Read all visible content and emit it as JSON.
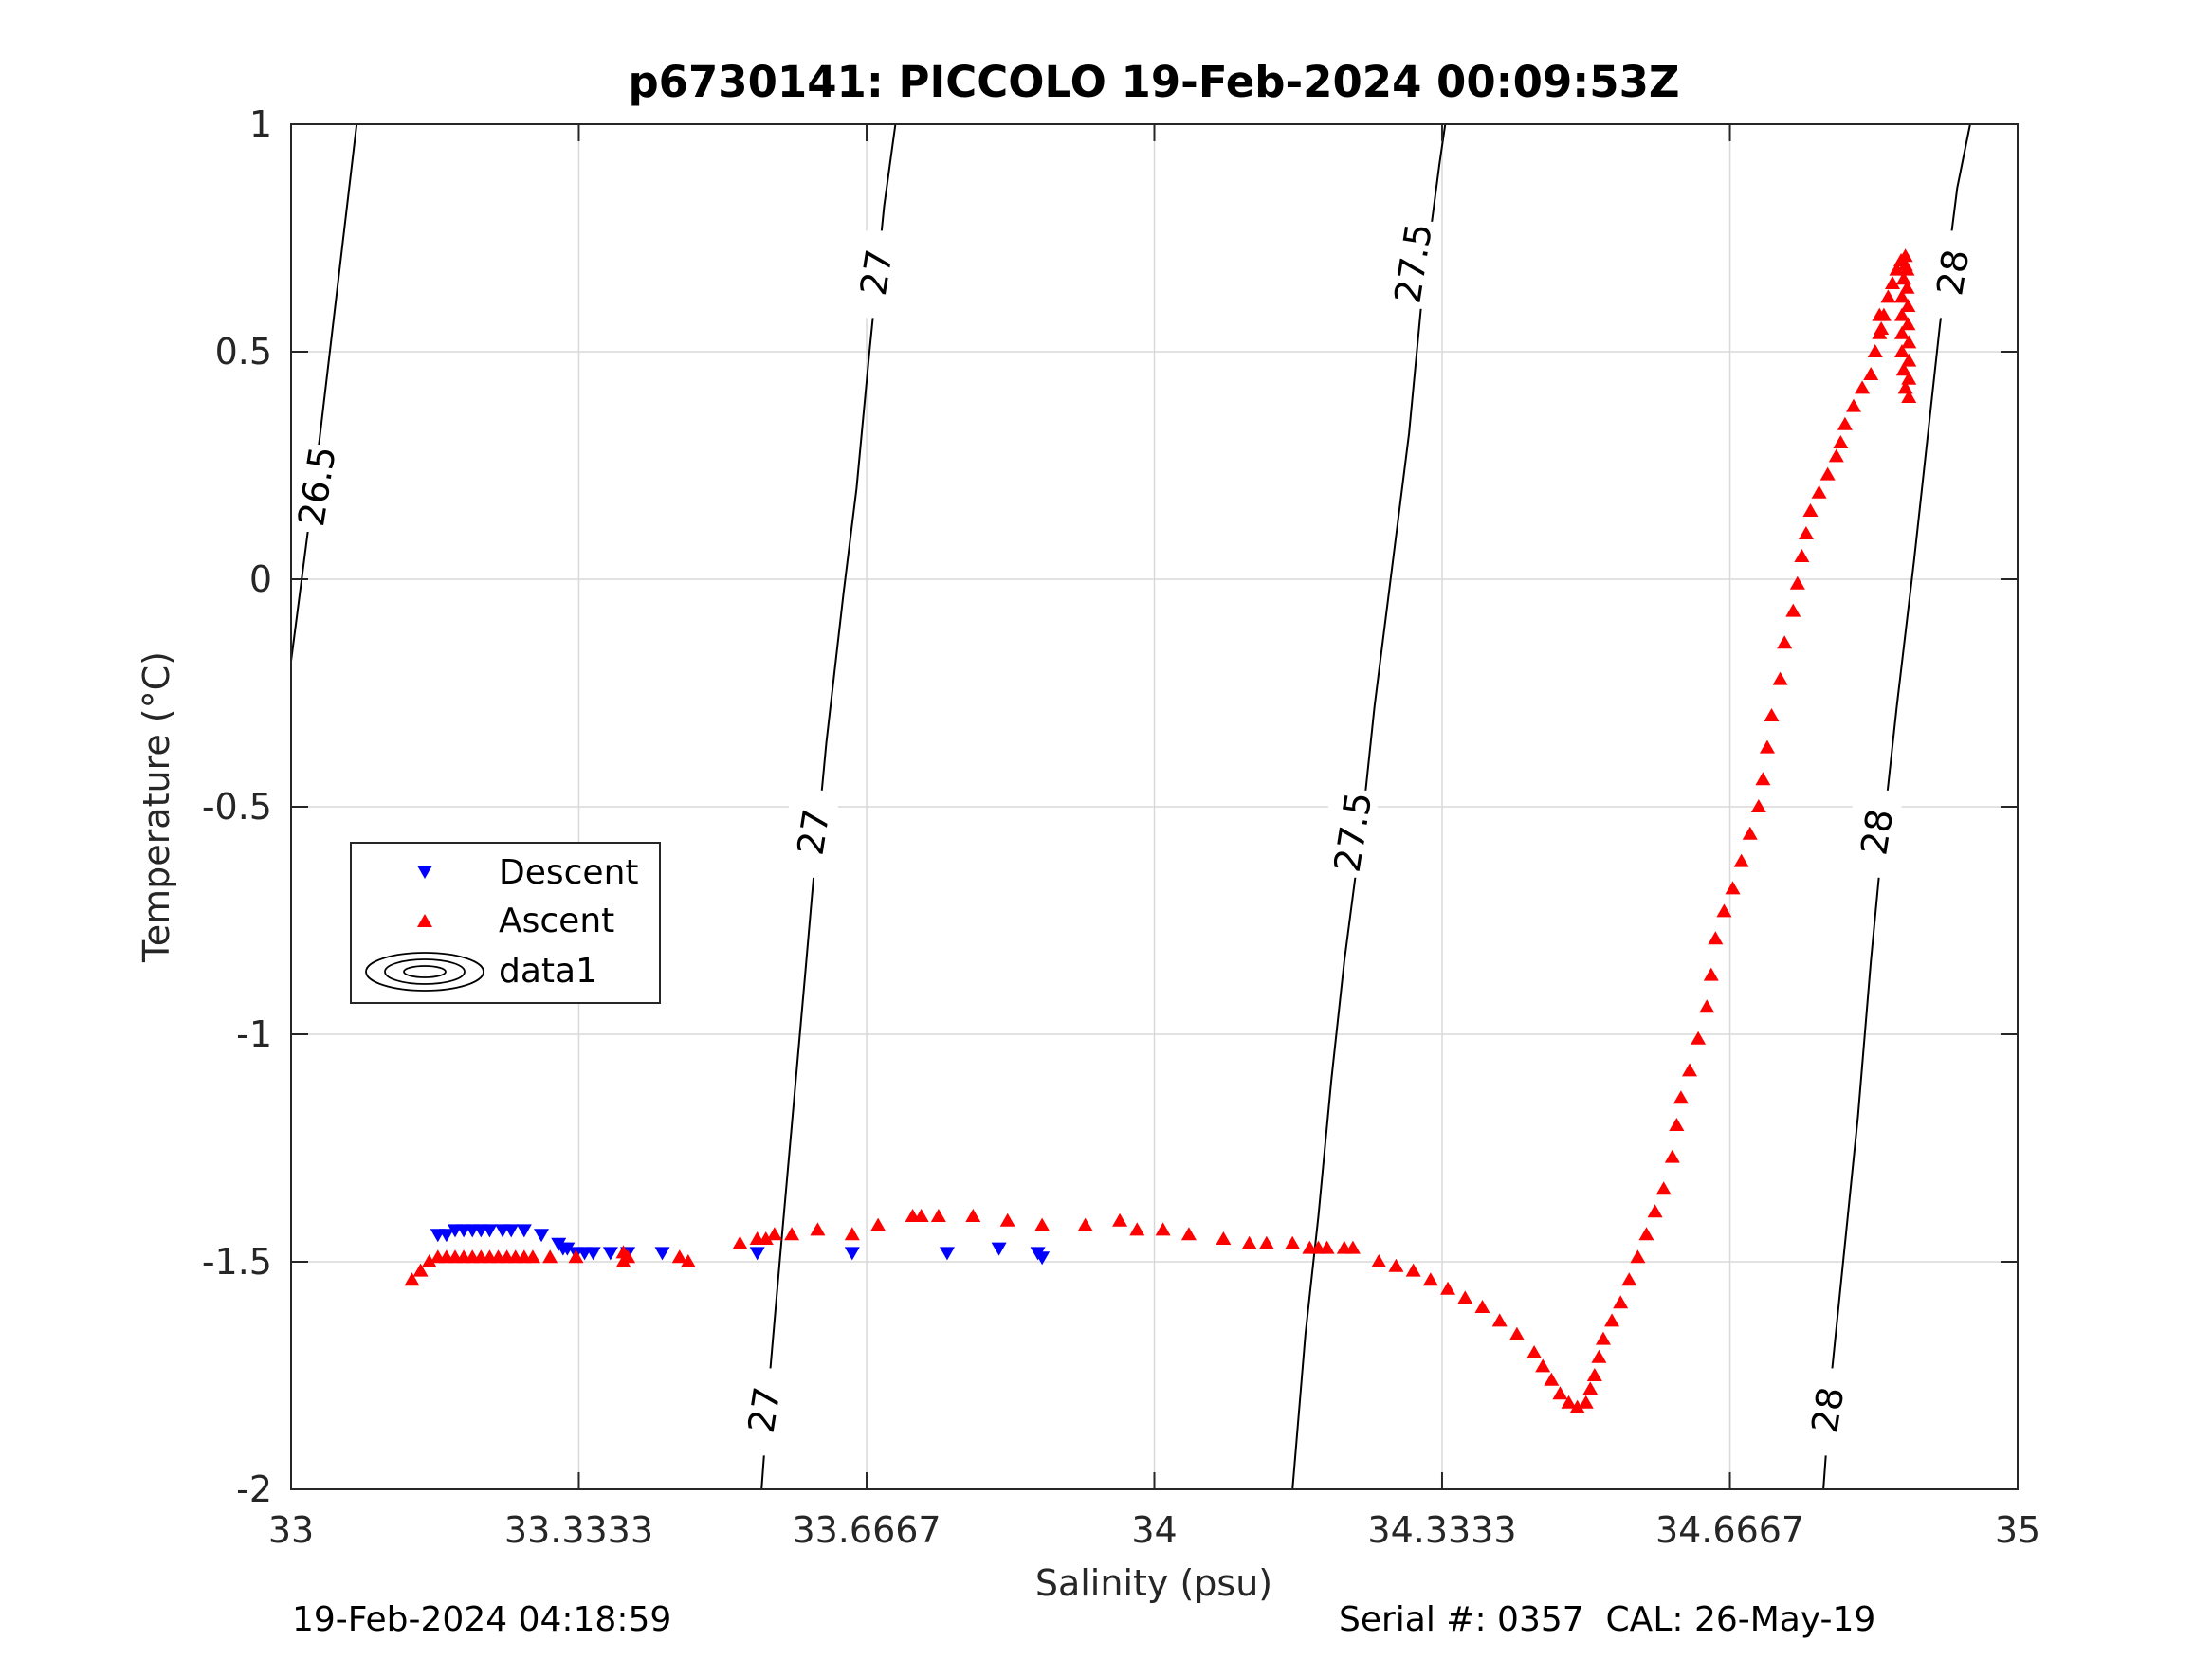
{
  "chart_data": {
    "type": "scatter",
    "title": "p6730141: PICCOLO 19-Feb-2024 00:09:53Z",
    "xlabel": "Salinity (psu)",
    "ylabel": "Temperature (°C)",
    "xlim": [
      33,
      35
    ],
    "ylim": [
      -2,
      1
    ],
    "xticks": [
      33,
      33.3333,
      33.6667,
      34,
      34.3333,
      34.6667,
      35
    ],
    "xtick_labels": [
      "33",
      "33.3333",
      "33.6667",
      "34",
      "34.3333",
      "34.6667",
      "35"
    ],
    "yticks": [
      -2,
      -1.5,
      -1,
      -0.5,
      0,
      0.5,
      1
    ],
    "ytick_labels": [
      "-2",
      "-1.5",
      "-1",
      "-0.5",
      "0",
      "0.5",
      "1"
    ],
    "grid": true,
    "legend_placement": "center-left",
    "legend": [
      "Descent",
      "Ascent",
      "data1"
    ],
    "colors": {
      "descent": "#0000ff",
      "ascent": "#ff0000",
      "contour": "#000000",
      "grid": "#d9d9d9"
    },
    "series": [
      {
        "name": "Descent",
        "marker": "triangle-down",
        "points": [
          [
            33.17,
            -1.44
          ],
          [
            33.18,
            -1.44
          ],
          [
            33.19,
            -1.43
          ],
          [
            33.2,
            -1.43
          ],
          [
            33.21,
            -1.43
          ],
          [
            33.22,
            -1.43
          ],
          [
            33.23,
            -1.43
          ],
          [
            33.245,
            -1.43
          ],
          [
            33.255,
            -1.43
          ],
          [
            33.27,
            -1.43
          ],
          [
            33.29,
            -1.44
          ],
          [
            33.31,
            -1.46
          ],
          [
            33.315,
            -1.47
          ],
          [
            33.32,
            -1.47
          ],
          [
            33.33,
            -1.48
          ],
          [
            33.34,
            -1.48
          ],
          [
            33.35,
            -1.48
          ],
          [
            33.37,
            -1.48
          ],
          [
            33.39,
            -1.48
          ],
          [
            33.43,
            -1.48
          ],
          [
            33.54,
            -1.48
          ],
          [
            33.65,
            -1.48
          ],
          [
            33.76,
            -1.48
          ],
          [
            33.82,
            -1.47
          ],
          [
            33.865,
            -1.48
          ],
          [
            33.87,
            -1.49
          ]
        ]
      },
      {
        "name": "Ascent",
        "marker": "triangle-up",
        "points": [
          [
            33.14,
            -1.54
          ],
          [
            33.15,
            -1.52
          ],
          [
            33.16,
            -1.5
          ],
          [
            33.17,
            -1.49
          ],
          [
            33.18,
            -1.49
          ],
          [
            33.19,
            -1.49
          ],
          [
            33.2,
            -1.49
          ],
          [
            33.21,
            -1.49
          ],
          [
            33.22,
            -1.49
          ],
          [
            33.23,
            -1.49
          ],
          [
            33.24,
            -1.49
          ],
          [
            33.25,
            -1.49
          ],
          [
            33.26,
            -1.49
          ],
          [
            33.27,
            -1.49
          ],
          [
            33.28,
            -1.49
          ],
          [
            33.3,
            -1.49
          ],
          [
            33.33,
            -1.49
          ],
          [
            33.385,
            -1.48
          ],
          [
            33.385,
            -1.5
          ],
          [
            33.39,
            -1.49
          ],
          [
            33.45,
            -1.49
          ],
          [
            33.46,
            -1.5
          ],
          [
            33.52,
            -1.46
          ],
          [
            33.54,
            -1.45
          ],
          [
            33.55,
            -1.45
          ],
          [
            33.56,
            -1.44
          ],
          [
            33.58,
            -1.44
          ],
          [
            33.61,
            -1.43
          ],
          [
            33.65,
            -1.44
          ],
          [
            33.68,
            -1.42
          ],
          [
            33.72,
            -1.4
          ],
          [
            33.73,
            -1.4
          ],
          [
            33.75,
            -1.4
          ],
          [
            33.79,
            -1.4
          ],
          [
            33.83,
            -1.41
          ],
          [
            33.87,
            -1.42
          ],
          [
            33.92,
            -1.42
          ],
          [
            33.96,
            -1.41
          ],
          [
            33.98,
            -1.43
          ],
          [
            34.01,
            -1.43
          ],
          [
            34.04,
            -1.44
          ],
          [
            34.08,
            -1.45
          ],
          [
            34.11,
            -1.46
          ],
          [
            34.13,
            -1.46
          ],
          [
            34.16,
            -1.46
          ],
          [
            34.18,
            -1.47
          ],
          [
            34.19,
            -1.47
          ],
          [
            34.2,
            -1.47
          ],
          [
            34.22,
            -1.47
          ],
          [
            34.23,
            -1.47
          ],
          [
            34.26,
            -1.5
          ],
          [
            34.28,
            -1.51
          ],
          [
            34.3,
            -1.52
          ],
          [
            34.32,
            -1.54
          ],
          [
            34.34,
            -1.56
          ],
          [
            34.36,
            -1.58
          ],
          [
            34.38,
            -1.6
          ],
          [
            34.4,
            -1.63
          ],
          [
            34.42,
            -1.66
          ],
          [
            34.44,
            -1.7
          ],
          [
            34.45,
            -1.73
          ],
          [
            34.46,
            -1.76
          ],
          [
            34.47,
            -1.79
          ],
          [
            34.48,
            -1.81
          ],
          [
            34.49,
            -1.82
          ],
          [
            34.5,
            -1.81
          ],
          [
            34.505,
            -1.78
          ],
          [
            34.51,
            -1.75
          ],
          [
            34.515,
            -1.71
          ],
          [
            34.52,
            -1.67
          ],
          [
            34.53,
            -1.63
          ],
          [
            34.54,
            -1.59
          ],
          [
            34.55,
            -1.54
          ],
          [
            34.56,
            -1.49
          ],
          [
            34.57,
            -1.44
          ],
          [
            34.58,
            -1.39
          ],
          [
            34.59,
            -1.34
          ],
          [
            34.6,
            -1.27
          ],
          [
            34.605,
            -1.2
          ],
          [
            34.61,
            -1.14
          ],
          [
            34.62,
            -1.08
          ],
          [
            34.63,
            -1.01
          ],
          [
            34.64,
            -0.94
          ],
          [
            34.645,
            -0.87
          ],
          [
            34.65,
            -0.79
          ],
          [
            34.66,
            -0.73
          ],
          [
            34.67,
            -0.68
          ],
          [
            34.68,
            -0.62
          ],
          [
            34.69,
            -0.56
          ],
          [
            34.7,
            -0.5
          ],
          [
            34.705,
            -0.44
          ],
          [
            34.71,
            -0.37
          ],
          [
            34.715,
            -0.3
          ],
          [
            34.725,
            -0.22
          ],
          [
            34.73,
            -0.14
          ],
          [
            34.74,
            -0.07
          ],
          [
            34.745,
            -0.01
          ],
          [
            34.75,
            0.05
          ],
          [
            34.755,
            0.1
          ],
          [
            34.76,
            0.15
          ],
          [
            34.77,
            0.19
          ],
          [
            34.78,
            0.23
          ],
          [
            34.79,
            0.27
          ],
          [
            34.795,
            0.3
          ],
          [
            34.8,
            0.34
          ],
          [
            34.81,
            0.38
          ],
          [
            34.82,
            0.42
          ],
          [
            34.83,
            0.45
          ],
          [
            34.835,
            0.5
          ],
          [
            34.84,
            0.54
          ],
          [
            34.845,
            0.58
          ],
          [
            34.85,
            0.62
          ],
          [
            34.855,
            0.65
          ],
          [
            34.86,
            0.68
          ],
          [
            34.865,
            0.7
          ],
          [
            34.87,
            0.71
          ],
          [
            34.872,
            0.68
          ],
          [
            34.872,
            0.64
          ],
          [
            34.873,
            0.6
          ],
          [
            34.873,
            0.56
          ],
          [
            34.874,
            0.52
          ],
          [
            34.874,
            0.48
          ],
          [
            34.874,
            0.44
          ],
          [
            34.874,
            0.4
          ],
          [
            34.87,
            0.42
          ],
          [
            34.868,
            0.46
          ],
          [
            34.866,
            0.5
          ],
          [
            34.866,
            0.54
          ],
          [
            34.866,
            0.58
          ],
          [
            34.866,
            0.62
          ],
          [
            34.868,
            0.66
          ],
          [
            34.87,
            0.69
          ],
          [
            34.84,
            0.58
          ],
          [
            34.842,
            0.55
          ]
        ]
      },
      {
        "name": "data1",
        "type": "contour",
        "levels": [
          26.5,
          27,
          27.5,
          28
        ],
        "lines": [
          {
            "level": 26.5,
            "points": [
              [
                33.0,
                -0.18
              ],
              [
                33.03,
                0.26
              ],
              [
                33.076,
                1.0
              ]
            ]
          },
          {
            "level": 27,
            "points": [
              [
                33.545,
                -2.0
              ],
              [
                33.555,
                -1.74
              ],
              [
                33.566,
                -1.5
              ],
              [
                33.58,
                -1.2
              ],
              [
                33.595,
                -0.88
              ],
              [
                33.605,
                -0.66
              ],
              [
                33.62,
                -0.36
              ],
              [
                33.64,
                -0.03
              ],
              [
                33.655,
                0.2
              ],
              [
                33.67,
                0.5
              ],
              [
                33.687,
                0.82
              ],
              [
                33.7,
                1.0
              ]
            ]
          },
          {
            "level": 27.5,
            "points": [
              [
                34.16,
                -2.0
              ],
              [
                34.175,
                -1.66
              ],
              [
                34.19,
                -1.4
              ],
              [
                34.205,
                -1.1
              ],
              [
                34.22,
                -0.84
              ],
              [
                34.24,
                -0.55
              ],
              [
                34.255,
                -0.28
              ],
              [
                34.275,
                0.02
              ],
              [
                34.295,
                0.32
              ],
              [
                34.31,
                0.62
              ],
              [
                34.33,
                0.91
              ],
              [
                34.337,
                1.0
              ]
            ]
          },
          {
            "level": 28,
            "points": [
              [
                34.775,
                -2.0
              ],
              [
                34.785,
                -1.74
              ],
              [
                34.8,
                -1.46
              ],
              [
                34.815,
                -1.18
              ],
              [
                34.83,
                -0.84
              ],
              [
                34.845,
                -0.54
              ],
              [
                34.86,
                -0.28
              ],
              [
                34.88,
                0.04
              ],
              [
                34.895,
                0.3
              ],
              [
                34.91,
                0.56
              ],
              [
                34.93,
                0.86
              ],
              [
                34.945,
                1.0
              ]
            ]
          }
        ],
        "labels": [
          {
            "text": "26.5",
            "at": [
              33.03,
              0.2
            ]
          },
          {
            "text": "27",
            "at": [
              33.678,
              0.67
            ]
          },
          {
            "text": "27",
            "at": [
              33.605,
              -0.56
            ]
          },
          {
            "text": "27",
            "at": [
              33.548,
              -1.83
            ]
          },
          {
            "text": "27.5",
            "at": [
              34.3,
              0.69
            ]
          },
          {
            "text": "27.5",
            "at": [
              34.23,
              -0.56
            ]
          },
          {
            "text": "28",
            "at": [
              34.925,
              0.67
            ]
          },
          {
            "text": "28",
            "at": [
              34.837,
              -0.56
            ]
          },
          {
            "text": "28",
            "at": [
              34.78,
              -1.83
            ]
          }
        ]
      }
    ]
  },
  "footer": {
    "timestamp": "19-Feb-2024 04:18:59",
    "serial": "Serial #: 0357  CAL: 26-May-19"
  }
}
